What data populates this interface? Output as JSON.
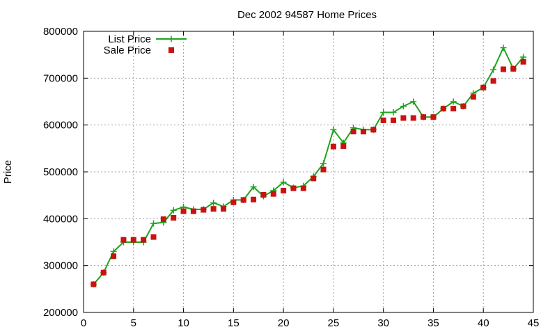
{
  "chart_data": {
    "type": "line",
    "title": "Dec 2002 94587 Home Prices",
    "xlabel": "",
    "ylabel": "Price",
    "xlim": [
      0,
      45
    ],
    "ylim": [
      200000,
      800000
    ],
    "xticks": [
      0,
      5,
      10,
      15,
      20,
      25,
      30,
      35,
      40,
      45
    ],
    "yticks": [
      200000,
      300000,
      400000,
      500000,
      600000,
      700000,
      800000
    ],
    "xtick_labels": [
      "0",
      "5",
      "10",
      "15",
      "20",
      "25",
      "30",
      "35",
      "40",
      "45"
    ],
    "ytick_labels": [
      "200000",
      "300000",
      "400000",
      "500000",
      "600000",
      "700000",
      "800000"
    ],
    "grid": true,
    "legend_position": "top-left",
    "x": [
      1,
      2,
      3,
      4,
      5,
      6,
      7,
      8,
      9,
      10,
      11,
      12,
      13,
      14,
      15,
      16,
      17,
      18,
      19,
      20,
      21,
      22,
      23,
      24,
      25,
      26,
      27,
      28,
      29,
      30,
      31,
      32,
      33,
      34,
      35,
      36,
      37,
      38,
      39,
      40,
      41,
      42,
      43,
      44
    ],
    "series": [
      {
        "name": "List Price",
        "style": "linespoints",
        "marker": "plus",
        "color": "#1aa51a",
        "values": [
          260000,
          285000,
          330000,
          350000,
          350000,
          350000,
          390000,
          392000,
          418000,
          425000,
          420000,
          420000,
          434000,
          426000,
          440000,
          440000,
          468000,
          448000,
          460000,
          478000,
          466000,
          470000,
          490000,
          518000,
          590000,
          562000,
          594000,
          590000,
          590000,
          627000,
          627000,
          640000,
          650000,
          617000,
          617000,
          635000,
          650000,
          640000,
          668000,
          680000,
          718000,
          765000,
          720000,
          745000
        ]
      },
      {
        "name": "Sale Price",
        "style": "points",
        "marker": "square",
        "color": "#cc1111",
        "values": [
          260000,
          285000,
          320000,
          355000,
          355000,
          355000,
          361000,
          399000,
          402000,
          416000,
          416000,
          419000,
          421000,
          421000,
          435000,
          440000,
          441000,
          451000,
          453000,
          460000,
          465000,
          465000,
          486000,
          505000,
          554000,
          555000,
          586000,
          586000,
          590000,
          610000,
          610000,
          615000,
          615000,
          617000,
          617000,
          635000,
          635000,
          640000,
          660000,
          680000,
          694000,
          719000,
          720000,
          735000
        ]
      }
    ]
  }
}
